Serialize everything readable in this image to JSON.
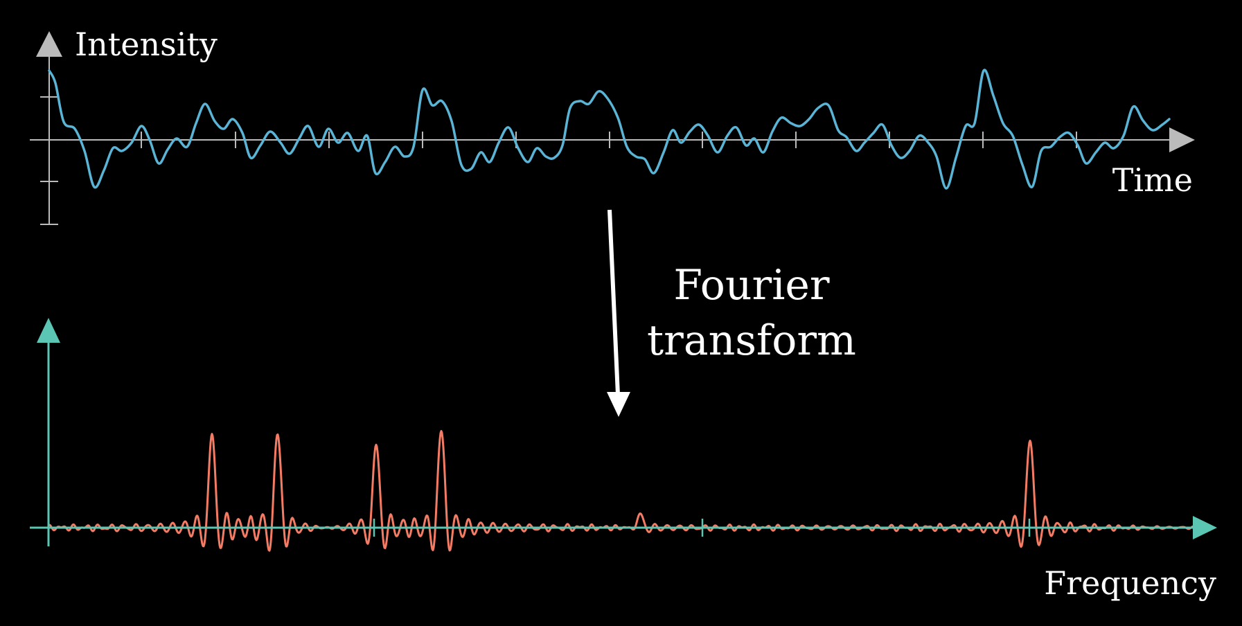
{
  "colors": {
    "background": "#000000",
    "time_axis": "#bbbbbb",
    "time_signal": "#5ab4d6",
    "frequency_axis": "#5cc6b4",
    "frequency_signal": "#f47c65",
    "text": "#ffffff"
  },
  "time_plot": {
    "y_label": "Intensity",
    "x_label": "Time"
  },
  "transform": {
    "line1": "Fourier",
    "line2": "transform"
  },
  "frequency_plot": {
    "x_label": "Frequency"
  }
}
